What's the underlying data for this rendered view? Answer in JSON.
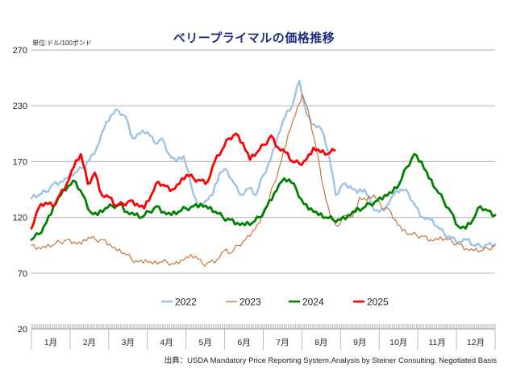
{
  "chart_data": {
    "type": "line",
    "title": "ベリープライマルの価格推移",
    "unit_label": "単位:ドル/100ポンド",
    "source": "出典：USDA  Mandatory Price Reporting System.Analysis by Steiner Consulting. Negotiated Basis",
    "xlabel": "",
    "ylabel": "",
    "y_ticks": [
      270,
      230,
      170,
      120,
      70,
      20
    ],
    "ylim": [
      20,
      270
    ],
    "x_tick_labels": [
      "1月",
      "2月",
      "3月",
      "4月",
      "5月",
      "6月",
      "7月",
      "8月",
      "9月",
      "10月",
      "11月",
      "12月"
    ],
    "x_unit": "week",
    "x_range": [
      0,
      52
    ],
    "grid": true,
    "legend_position": "bottom-center",
    "series": [
      {
        "name": "2022",
        "color": "#9dc3e6",
        "values": [
          137,
          140,
          143,
          150,
          152,
          155,
          160,
          164,
          172,
          185,
          205,
          220,
          225,
          218,
          195,
          200,
          202,
          190,
          195,
          178,
          170,
          176,
          150,
          130,
          135,
          140,
          160,
          162,
          150,
          140,
          146,
          140,
          158,
          172,
          198,
          218,
          230,
          248,
          220,
          210,
          205,
          180,
          140,
          150,
          148,
          142,
          145,
          130,
          125,
          130,
          140,
          145,
          142,
          130,
          120,
          118,
          112,
          105,
          102,
          98,
          100,
          95,
          94,
          96,
          96
        ]
      },
      {
        "name": "2023",
        "color": "#c9733a",
        "values": [
          95,
          93,
          93,
          95,
          98,
          100,
          98,
          96,
          102,
          100,
          100,
          96,
          90,
          88,
          83,
          80,
          82,
          78,
          80,
          80,
          78,
          82,
          84,
          85,
          78,
          80,
          82,
          90,
          88,
          95,
          100,
          108,
          115,
          130,
          150,
          170,
          200,
          220,
          238,
          218,
          182,
          145,
          118,
          112,
          122,
          120,
          138,
          135,
          140,
          130,
          128,
          118,
          108,
          105,
          104,
          103,
          100,
          100,
          101,
          98,
          96,
          92,
          90,
          90,
          92,
          95
        ]
      },
      {
        "name": "2024",
        "color": "#008000",
        "values": [
          100,
          105,
          115,
          130,
          140,
          148,
          152,
          140,
          125,
          122,
          128,
          130,
          132,
          125,
          122,
          120,
          125,
          130,
          125,
          122,
          125,
          128,
          130,
          132,
          128,
          125,
          120,
          118,
          115,
          113,
          115,
          120,
          130,
          142,
          152,
          154,
          145,
          132,
          128,
          122,
          120,
          118,
          118,
          122,
          125,
          128,
          132,
          135,
          140,
          142,
          150,
          165,
          178,
          170,
          155,
          145,
          135,
          125,
          112,
          110,
          118,
          130,
          126,
          122
        ]
      },
      {
        "name": "2025",
        "color": "#ff0000",
        "values": [
          110,
          128,
          133,
          130,
          140,
          150,
          165,
          178,
          150,
          160,
          140,
          138,
          130,
          132,
          135,
          132,
          128,
          140,
          152,
          148,
          145,
          150,
          158,
          155,
          153,
          152,
          170,
          182,
          195,
          200,
          190,
          172,
          180,
          188,
          198,
          185,
          180,
          170,
          168,
          172,
          185,
          180,
          178,
          182
        ]
      }
    ],
    "series_x_weeks": {
      "2022": "0..52 evenly spaced across full year",
      "2023": "0..52 evenly spaced across full year",
      "2024": "0..52 evenly spaced across full year",
      "2025": "0..~34 (data through late August)"
    }
  }
}
